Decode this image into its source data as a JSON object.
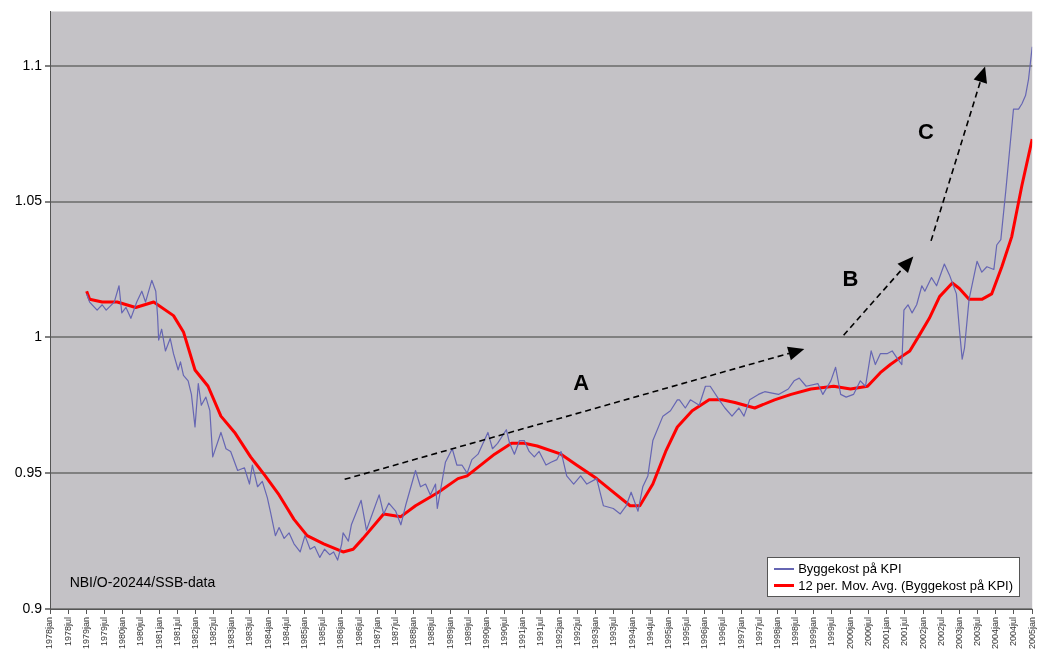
{
  "chart_data": {
    "type": "line",
    "xlim": [
      "1978-01",
      "2005-01"
    ],
    "ylim": [
      0.9,
      1.12
    ],
    "xticks": [
      {
        "value": "1978-01",
        "label": "1978jan"
      },
      {
        "value": "1978-07",
        "label": "1978jul"
      },
      {
        "value": "1979-01",
        "label": "1979jan"
      },
      {
        "value": "1979-07",
        "label": "1979jul"
      },
      {
        "value": "1980-01",
        "label": "1980jan"
      },
      {
        "value": "1980-07",
        "label": "1980jul"
      },
      {
        "value": "1981-01",
        "label": "1981jan"
      },
      {
        "value": "1981-07",
        "label": "1981jul"
      },
      {
        "value": "1982-01",
        "label": "1982jan"
      },
      {
        "value": "1982-07",
        "label": "1982jul"
      },
      {
        "value": "1983-01",
        "label": "1983jan"
      },
      {
        "value": "1983-07",
        "label": "1983jul"
      },
      {
        "value": "1984-01",
        "label": "1984jan"
      },
      {
        "value": "1984-07",
        "label": "1984jul"
      },
      {
        "value": "1985-01",
        "label": "1985jan"
      },
      {
        "value": "1985-07",
        "label": "1985jul"
      },
      {
        "value": "1986-01",
        "label": "1986jan"
      },
      {
        "value": "1986-07",
        "label": "1986jul"
      },
      {
        "value": "1987-01",
        "label": "1987jan"
      },
      {
        "value": "1987-07",
        "label": "1987jul"
      },
      {
        "value": "1988-01",
        "label": "1988jan"
      },
      {
        "value": "1988-07",
        "label": "1988jul"
      },
      {
        "value": "1989-01",
        "label": "1989jan"
      },
      {
        "value": "1989-07",
        "label": "1989jul"
      },
      {
        "value": "1990-01",
        "label": "1990jan"
      },
      {
        "value": "1990-07",
        "label": "1990jul"
      },
      {
        "value": "1991-01",
        "label": "1991jan"
      },
      {
        "value": "1991-07",
        "label": "1991jul"
      },
      {
        "value": "1992-01",
        "label": "1992jan"
      },
      {
        "value": "1992-07",
        "label": "1992jul"
      },
      {
        "value": "1993-01",
        "label": "1993jan"
      },
      {
        "value": "1993-07",
        "label": "1993jul"
      },
      {
        "value": "1994-01",
        "label": "1994jan"
      },
      {
        "value": "1994-07",
        "label": "1994jul"
      },
      {
        "value": "1995-01",
        "label": "1995jan"
      },
      {
        "value": "1995-07",
        "label": "1995jul"
      },
      {
        "value": "1996-01",
        "label": "1996jan"
      },
      {
        "value": "1996-07",
        "label": "1996jul"
      },
      {
        "value": "1997-01",
        "label": "1997jan"
      },
      {
        "value": "1997-07",
        "label": "1997jul"
      },
      {
        "value": "1998-01",
        "label": "1998jan"
      },
      {
        "value": "1998-07",
        "label": "1998jul"
      },
      {
        "value": "1999-01",
        "label": "1999jan"
      },
      {
        "value": "1999-07",
        "label": "1999jul"
      },
      {
        "value": "2000-01",
        "label": "2000jan"
      },
      {
        "value": "2000-07",
        "label": "2000jul"
      },
      {
        "value": "2001-01",
        "label": "2001jan"
      },
      {
        "value": "2001-07",
        "label": "2001jul"
      },
      {
        "value": "2002-01",
        "label": "2002jan"
      },
      {
        "value": "2002-07",
        "label": "2002jul"
      },
      {
        "value": "2003-01",
        "label": "2003jan"
      },
      {
        "value": "2003-07",
        "label": "2003jul"
      },
      {
        "value": "2004-01",
        "label": "2004jan"
      },
      {
        "value": "2004-07",
        "label": "2004jul"
      },
      {
        "value": "2005-01",
        "label": "2005jan"
      }
    ],
    "yticks": [
      0.9,
      0.95,
      1,
      1.05,
      1.1
    ],
    "grid": "y",
    "legend": "bottom right",
    "marker": "none",
    "line_style": "solid",
    "series": [
      {
        "name": "Byggekost på KPI",
        "color": "#6666b3",
        "x": [
          "1979-01-04",
          "1979-02-03",
          "1979-04-19",
          "1979-06-09",
          "1979-07-19",
          "1979-10-08",
          "1979-11-25",
          "1979-12-23",
          "1980-02-03",
          "1980-03-23",
          "1980-05-21",
          "1980-07-11",
          "1980-08-17",
          "1980-10-19",
          "1980-11-28",
          "1980-12-16",
          "1980-12-27",
          "1981-01-26",
          "1981-03-05",
          "1981-04-22",
          "1981-05-25",
          "1981-07-11",
          "1981-08-03",
          "1981-09-02",
          "1981-10-19",
          "1981-11-21",
          "1981-12-27",
          "1982-01-29",
          "1982-02-28",
          "1982-04-15",
          "1982-05-25",
          "1982-06-23",
          "1982-09-13",
          "1982-11-03",
          "1982-12-20",
          "1983-02-28",
          "1983-05-07",
          "1983-06-27",
          "1983-07-26",
          "1983-09-16",
          "1983-11-03",
          "1983-12-23",
          "1984-01-22",
          "1984-03-13",
          "1984-04-19",
          "1984-06-09",
          "1984-07-29",
          "1984-09-16",
          "1984-11-17",
          "1985-01-04",
          "1985-02-25",
          "1985-04-11",
          "1985-06-02",
          "1985-07-19",
          "1985-09-09",
          "1985-10-19",
          "1985-11-28",
          "1986-01-08",
          "1986-01-22",
          "1986-03-16",
          "1986-04-15",
          "1986-07-22",
          "1986-09-13",
          "1987-01-19",
          "1987-03-05",
          "1987-04-26",
          "1987-07-04",
          "1987-08-25",
          "1987-10-11",
          "1988-01-19",
          "1988-03-09",
          "1988-04-29",
          "1988-06-16",
          "1988-08-07",
          "1988-08-25",
          "1988-11-14",
          "1989-01-22",
          "1989-03-09",
          "1989-04-29",
          "1989-06-20",
          "1989-08-07",
          "1989-10-08",
          "1990-01-15",
          "1990-03-02",
          "1990-04-22",
          "1990-07-19",
          "1990-08-21",
          "1990-10-08",
          "1990-11-28",
          "1991-01-15",
          "1991-03-05",
          "1991-04-26",
          "1991-06-13",
          "1991-08-21",
          "1991-10-11",
          "1991-12-09",
          "1992-01-19",
          "1992-03-16",
          "1992-05-25",
          "1992-08-03",
          "1992-10-04",
          "1993-01-11",
          "1993-03-20",
          "1993-06-27",
          "1993-09-05",
          "1993-11-03",
          "1993-12-23",
          "1994-03-02",
          "1994-04-19",
          "1994-06-09",
          "1994-07-29",
          "1994-11-07",
          "1995-01-22",
          "1995-04-01",
          "1995-04-22",
          "1995-06-20",
          "1995-08-10",
          "1995-11-07",
          "1996-01-08",
          "1996-02-25",
          "1996-05-25",
          "1996-07-22",
          "1996-10-01",
          "1996-12-09",
          "1997-01-29",
          "1997-03-27",
          "1997-06-23",
          "1997-08-25",
          "1998-01-11",
          "1998-04-19",
          "1998-06-16",
          "1998-08-07",
          "1998-10-15",
          "1999-02-10",
          "1999-04-01",
          "1999-06-20",
          "1999-08-07",
          "1999-09-27",
          "1999-11-21",
          "2000-02-03",
          "2000-04-11",
          "2000-06-02",
          "2000-07-29",
          "2000-09-09",
          "2000-10-29",
          "2001-01-04",
          "2001-02-25",
          "2001-04-22",
          "2001-06-02",
          "2001-06-23",
          "2001-08-03",
          "2001-09-13",
          "2001-10-29",
          "2001-12-20",
          "2002-01-19",
          "2002-03-27",
          "2002-05-17",
          "2002-08-03",
          "2002-09-23",
          "2002-12-02",
          "2003-01-01",
          "2003-01-29",
          "2003-02-21",
          "2003-04-08",
          "2003-06-27",
          "2003-08-14",
          "2003-10-04",
          "2003-12-13",
          "2004-01-11",
          "2004-02-21",
          "2004-04-11",
          "2004-06-27",
          "2004-08-17",
          "2004-09-20",
          "2004-10-26",
          "2004-11-25",
          "2005-01-01"
        ],
        "values": [
          1.016,
          1.013,
          1.01,
          1.012,
          1.01,
          1.013,
          1.019,
          1.009,
          1.011,
          1.007,
          1.013,
          1.017,
          1.013,
          1.021,
          1.017,
          1.008,
          0.999,
          1.003,
          0.995,
          0.9996,
          0.994,
          0.988,
          0.991,
          0.986,
          0.984,
          0.979,
          0.967,
          0.983,
          0.975,
          0.978,
          0.973,
          0.956,
          0.965,
          0.959,
          0.958,
          0.951,
          0.952,
          0.946,
          0.953,
          0.945,
          0.947,
          0.941,
          0.936,
          0.927,
          0.93,
          0.926,
          0.928,
          0.924,
          0.921,
          0.927,
          0.922,
          0.923,
          0.919,
          0.922,
          0.92,
          0.921,
          0.918,
          0.924,
          0.928,
          0.925,
          0.931,
          0.94,
          0.929,
          0.942,
          0.935,
          0.939,
          0.936,
          0.931,
          0.938,
          0.951,
          0.945,
          0.946,
          0.942,
          0.946,
          0.937,
          0.954,
          0.959,
          0.953,
          0.953,
          0.95,
          0.955,
          0.957,
          0.965,
          0.959,
          0.961,
          0.966,
          0.961,
          0.957,
          0.962,
          0.962,
          0.958,
          0.956,
          0.958,
          0.953,
          0.954,
          0.955,
          0.958,
          0.949,
          0.946,
          0.949,
          0.946,
          0.948,
          0.938,
          0.937,
          0.935,
          0.938,
          0.943,
          0.936,
          0.945,
          0.949,
          0.962,
          0.971,
          0.973,
          0.977,
          0.977,
          0.974,
          0.977,
          0.975,
          0.982,
          0.982,
          0.977,
          0.974,
          0.971,
          0.974,
          0.971,
          0.977,
          0.979,
          0.98,
          0.979,
          0.981,
          0.984,
          0.985,
          0.982,
          0.983,
          0.979,
          0.984,
          0.989,
          0.979,
          0.978,
          0.979,
          0.984,
          0.982,
          0.995,
          0.99,
          0.994,
          0.994,
          0.995,
          0.992,
          0.99,
          1.01,
          1.012,
          1.009,
          1.012,
          1.019,
          1.017,
          1.022,
          1.019,
          1.027,
          1.023,
          1.016,
          1.003,
          0.992,
          0.996,
          1.014,
          1.028,
          1.024,
          1.026,
          1.025,
          1.034,
          1.036,
          1.054,
          1.084,
          1.084,
          1.086,
          1.089,
          1.095,
          1.107
        ]
      },
      {
        "name": "12 per. Mov. Avg. (Byggekost på KPI)",
        "color": "#ff0000",
        "x": [
          "1979-01-04",
          "1979-02-03",
          "1979-06-09",
          "1979-11-07",
          "1980-05-10",
          "1980-11-07",
          "1981-05-25",
          "1981-09-02",
          "1981-12-27",
          "1982-05-07",
          "1982-09-13",
          "1983-01-29",
          "1983-07-08",
          "1983-12-02",
          "1984-04-19",
          "1984-09-16",
          "1985-01-26",
          "1985-07-11",
          "1986-01-22",
          "1986-05-03",
          "1986-08-10",
          "1987-03-05",
          "1987-08-25",
          "1988-01-19",
          "1988-09-05",
          "1989-03-20",
          "1989-06-20",
          "1990-03-23",
          "1990-09-09",
          "1991-01-15",
          "1991-05-25",
          "1992-01-19",
          "1992-06-23",
          "1993-01-11",
          "1993-06-27",
          "1993-12-13",
          "1994-03-20",
          "1994-07-29",
          "1994-12-05",
          "1995-04-01",
          "1995-08-28",
          "1996-02-14",
          "1996-06-23",
          "1996-10-29",
          "1997-05-17",
          "1997-12-02",
          "1998-05-17",
          "1998-12-02",
          "1999-07-19",
          "2000-01-04",
          "2000-06-23",
          "2000-10-29",
          "2001-02-07",
          "2001-06-02",
          "2001-08-21",
          "2001-11-28",
          "2002-03-05",
          "2002-06-16",
          "2002-10-22",
          "2003-01-01",
          "2003-04-08",
          "2003-08-14",
          "2003-11-21",
          "2004-03-02",
          "2004-06-09",
          "2004-09-20",
          "2005-01-01"
        ],
        "values": [
          1.017,
          1.014,
          1.013,
          1.013,
          1.011,
          1.013,
          1.008,
          1.002,
          0.988,
          0.982,
          0.971,
          0.965,
          0.956,
          0.949,
          0.942,
          0.933,
          0.927,
          0.924,
          0.921,
          0.922,
          0.926,
          0.935,
          0.934,
          0.938,
          0.943,
          0.948,
          0.949,
          0.957,
          0.961,
          0.961,
          0.96,
          0.957,
          0.953,
          0.948,
          0.943,
          0.938,
          0.938,
          0.946,
          0.958,
          0.967,
          0.973,
          0.977,
          0.977,
          0.976,
          0.974,
          0.977,
          0.979,
          0.981,
          0.982,
          0.981,
          0.982,
          0.987,
          0.99,
          0.993,
          0.995,
          1.001,
          1.007,
          1.015,
          1.02,
          1.018,
          1.014,
          1.014,
          1.016,
          1.026,
          1.037,
          1.056,
          1.073
        ]
      }
    ],
    "annotations": [
      "A",
      "B",
      "C",
      "NBI/O-20244/SSB-data"
    ]
  }
}
